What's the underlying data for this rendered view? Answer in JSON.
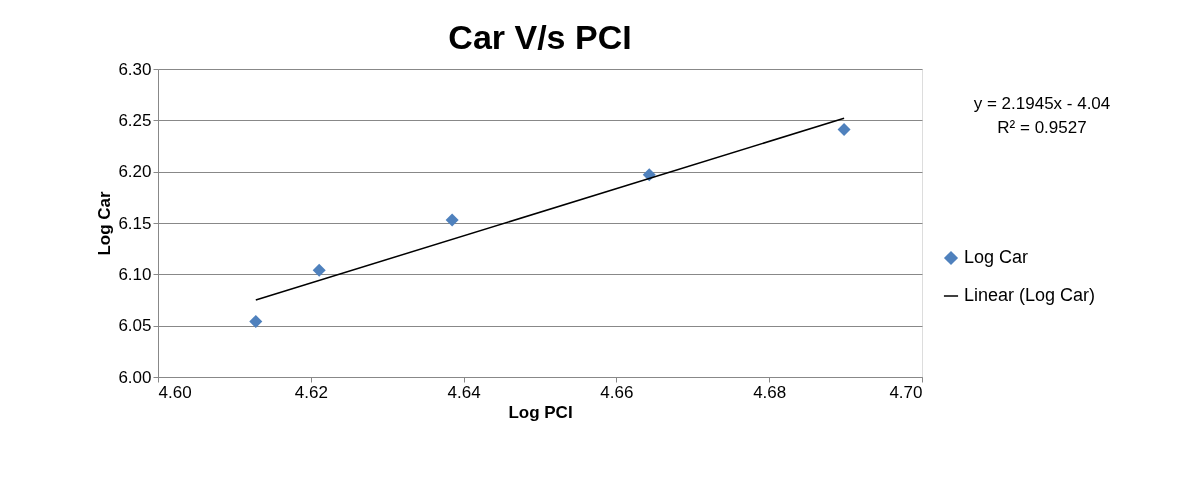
{
  "chart_data": {
    "type": "scatter",
    "title": "Car V/s PCI",
    "xlabel": "Log PCI",
    "ylabel": "Log Car",
    "xlim": [
      4.6,
      4.7
    ],
    "xticks": [
      {
        "value": 4.6,
        "label": "4.60"
      },
      {
        "value": 4.62,
        "label": "4.62"
      },
      {
        "value": 4.64,
        "label": "4.64"
      },
      {
        "value": 4.66,
        "label": "4.66"
      },
      {
        "value": 4.68,
        "label": "4.68"
      },
      {
        "value": 4.7,
        "label": "4.70"
      }
    ],
    "ylim": [
      6.0,
      6.3
    ],
    "yticks": [
      {
        "value": 6.0,
        "label": "6.00"
      },
      {
        "value": 6.05,
        "label": "6.05"
      },
      {
        "value": 6.1,
        "label": "6.10"
      },
      {
        "value": 6.15,
        "label": "6.15"
      },
      {
        "value": 6.2,
        "label": "6.20"
      },
      {
        "value": 6.25,
        "label": "6.25"
      },
      {
        "value": 6.3,
        "label": "6.30"
      }
    ],
    "grid": "y",
    "legend": "right",
    "series": [
      {
        "name": "Log Car",
        "marker": "diamond",
        "color": "#4f81bd",
        "x": [
          4.6128,
          4.6211,
          4.6385,
          4.6643,
          4.6898
        ],
        "values": [
          6.054,
          6.104,
          6.153,
          6.197,
          6.241
        ]
      },
      {
        "name": "Linear (Log Car)",
        "type": "line",
        "marker": "none",
        "color": "#000000",
        "x": [
          4.6128,
          4.6898
        ],
        "values": [
          6.075,
          6.252
        ]
      }
    ],
    "annotations": [
      "y = 2.1945x - 4.04",
      "R² = 0.9527"
    ]
  }
}
